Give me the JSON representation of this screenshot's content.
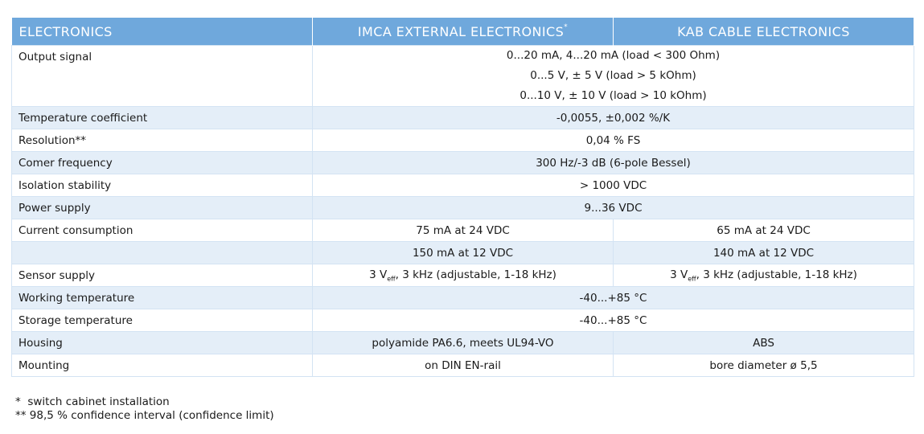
{
  "header": {
    "col1": "ELECTRONICS",
    "col2": "IMCA EXTERNAL ELECTRONICS",
    "col2_mark": "*",
    "col3": "KAB CABLE ELECTRONICS"
  },
  "rows": {
    "output_signal": {
      "label": "Output signal",
      "lines": [
        "0...20 mA, 4...20 mA (load < 300 Ohm)",
        "0...5 V, ± 5 V (load > 5 kOhm)",
        "0...10 V, ± 10 V (load > 10 kOhm)"
      ]
    },
    "temp_coeff": {
      "label": "Temperature coefficient",
      "value": "-0,0055, ±0,002 %/K"
    },
    "resolution": {
      "label": "Resolution**",
      "value": "0,04 % FS"
    },
    "corner_freq": {
      "label": "Comer frequency",
      "value": "300 Hz/-3 dB (6-pole Bessel)"
    },
    "isolation": {
      "label": "Isolation stability",
      "value": "> 1000 VDC"
    },
    "power": {
      "label": "Power supply",
      "value": "9...36 VDC"
    },
    "current1": {
      "label": "Current consumption",
      "imca": "75 mA at 24 VDC",
      "kab": "65 mA at 24 VDC"
    },
    "current2": {
      "label": "",
      "imca": "150 mA at 12 VDC",
      "kab": "140 mA at 12 VDC"
    },
    "sensor": {
      "label": "Sensor supply",
      "imca_pre": "3 V",
      "imca_sub": "eff",
      "imca_post": ", 3 kHz (adjustable, 1-18 kHz)",
      "kab_pre": "3 V",
      "kab_sub": "eff",
      "kab_post": ", 3 kHz (adjustable, 1-18 kHz)"
    },
    "working_temp": {
      "label": "Working temperature",
      "value": "-40...+85 °C"
    },
    "storage_temp": {
      "label": "Storage temperature",
      "value": "-40...+85 °C"
    },
    "housing": {
      "label": "Housing",
      "imca": "polyamide PA6.6, meets UL94-VO",
      "kab": "ABS"
    },
    "mounting": {
      "label": "Mounting",
      "imca": "on DIN EN-rail",
      "kab": "bore diameter ø 5,5"
    }
  },
  "footnotes": [
    "*  switch cabinet installation",
    "** 98,5 % confidence interval (confidence limit)"
  ]
}
